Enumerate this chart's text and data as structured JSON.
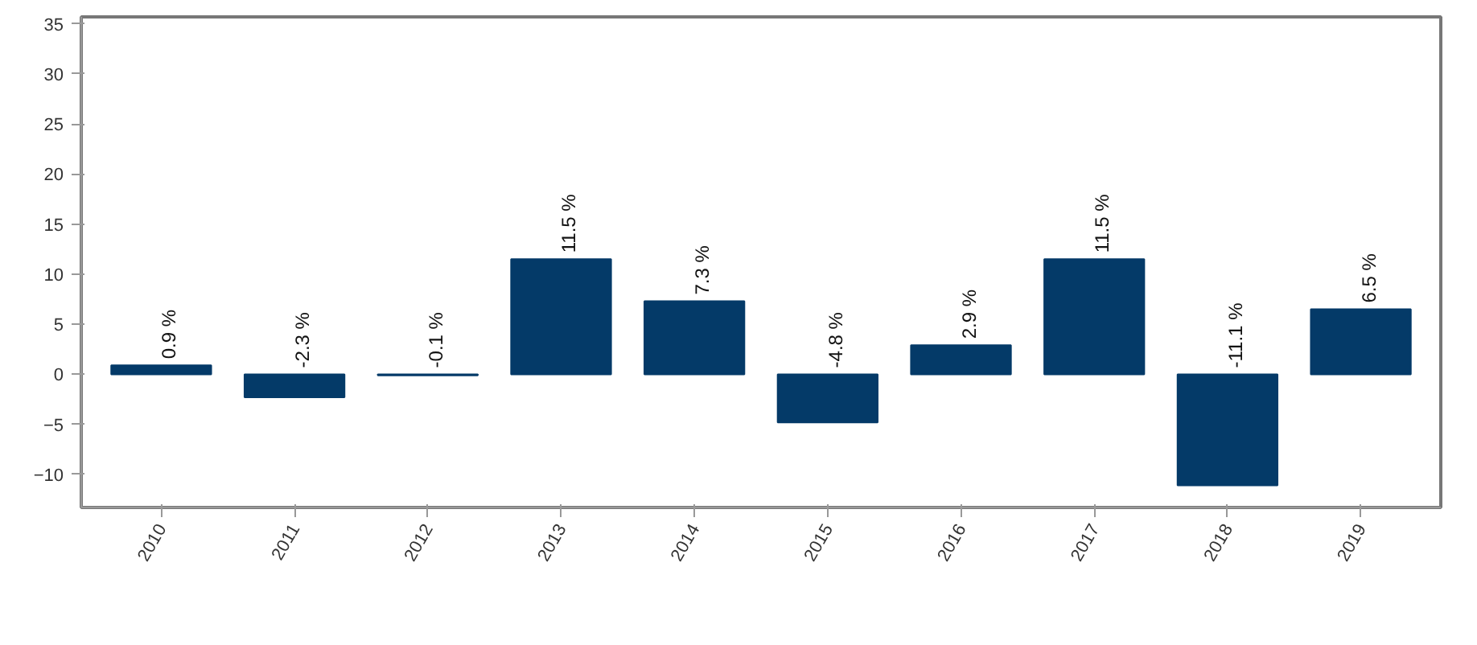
{
  "chart_data": {
    "type": "bar",
    "categories": [
      "2010",
      "2011",
      "2012",
      "2013",
      "2014",
      "2015",
      "2016",
      "2017",
      "2018",
      "2019"
    ],
    "series": [
      {
        "color": "#043a68",
        "values": [
          0.9,
          -2.3,
          -0.1,
          11.5,
          7.3,
          -4.8,
          2.9,
          11.5,
          -11.1,
          6.5
        ],
        "value_labels": [
          "0.9 %",
          "-2.3 %",
          "-0.1 %",
          "11.5 %",
          "7.3 %",
          "-4.8 %",
          "2.9 %",
          "11.5 %",
          "-11.1 %",
          "6.5 %"
        ]
      }
    ],
    "ylim": [
      -13.3,
      35.7
    ],
    "yticks": [
      -10,
      -5,
      0,
      5,
      10,
      15,
      20,
      25,
      30,
      35
    ],
    "grid": false
  }
}
